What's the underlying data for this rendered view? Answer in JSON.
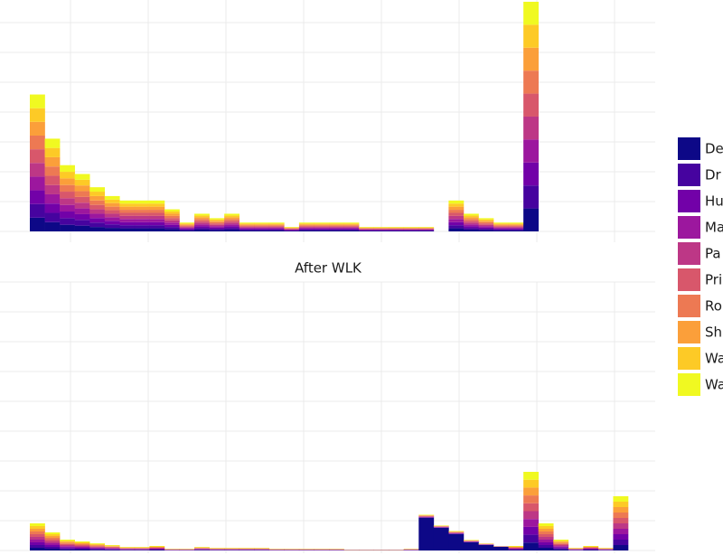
{
  "chart_data": [
    {
      "type": "bar",
      "stacked": true,
      "ylim": [
        0,
        262
      ],
      "categories": [
        null,
        null,
        null,
        null,
        null,
        null,
        null,
        null,
        null,
        null,
        null,
        null,
        null,
        null,
        null,
        null,
        null,
        null,
        null,
        null,
        null,
        null,
        null,
        null,
        null,
        null,
        null,
        null,
        null,
        null,
        null,
        null,
        null,
        null,
        null,
        null,
        null,
        null,
        null,
        null
      ],
      "series": [
        {
          "name": "De",
          "color": "#0d0887",
          "values": [
            15.5,
            10.5,
            7.5,
            6.5,
            5,
            4,
            3.5,
            3.5,
            3.5,
            2.5,
            1,
            2,
            1.5,
            2,
            1,
            1,
            1,
            0.5,
            1,
            1,
            1,
            1,
            0.5,
            0.5,
            0.5,
            0.5,
            0.5,
            0,
            3.5,
            2,
            1.5,
            1,
            1,
            26,
            0,
            0,
            0,
            0,
            0,
            0
          ]
        },
        {
          "name": "Dr",
          "color": "#46039f",
          "values": [
            15.5,
            10.5,
            7.5,
            6.5,
            5,
            4,
            3.5,
            3.5,
            3.5,
            2.5,
            1,
            2,
            1.5,
            2,
            1,
            1,
            1,
            0.5,
            1,
            1,
            1,
            1,
            0.5,
            0.5,
            0.5,
            0.5,
            0.5,
            0,
            3.5,
            2,
            1.5,
            1,
            1,
            26,
            0,
            0,
            0,
            0,
            0,
            0
          ]
        },
        {
          "name": "Hu",
          "color": "#7201a8",
          "values": [
            15.5,
            10.5,
            7.5,
            6.5,
            5,
            4,
            3.5,
            3.5,
            3.5,
            2.5,
            1,
            2,
            1.5,
            2,
            1,
            1,
            1,
            0.5,
            1,
            1,
            1,
            1,
            0.5,
            0.5,
            0.5,
            0.5,
            0.5,
            0,
            3.5,
            2,
            1.5,
            1,
            1,
            26,
            0,
            0,
            0,
            0,
            0,
            0
          ]
        },
        {
          "name": "Ma",
          "color": "#9c179e",
          "values": [
            15.5,
            10.5,
            7.5,
            6.5,
            5,
            4,
            3.5,
            3.5,
            3.5,
            2.5,
            1,
            2,
            1.5,
            2,
            1,
            1,
            1,
            0.5,
            1,
            1,
            1,
            1,
            0.5,
            0.5,
            0.5,
            0.5,
            0.5,
            0,
            3.5,
            2,
            1.5,
            1,
            1,
            26,
            0,
            0,
            0,
            0,
            0,
            0
          ]
        },
        {
          "name": "Pa",
          "color": "#bd3786",
          "values": [
            15.5,
            10.5,
            7.5,
            6.5,
            5,
            4,
            3.5,
            3.5,
            3.5,
            2.5,
            1,
            2,
            1.5,
            2,
            1,
            1,
            1,
            0.5,
            1,
            1,
            1,
            1,
            0.5,
            0.5,
            0.5,
            0.5,
            0.5,
            0,
            3.5,
            2,
            1.5,
            1,
            1,
            26,
            0,
            0,
            0,
            0,
            0,
            0
          ]
        },
        {
          "name": "Pri",
          "color": "#d8576b",
          "values": [
            15.5,
            10.5,
            7.5,
            6.5,
            5,
            4,
            3.5,
            3.5,
            3.5,
            2.5,
            1,
            2,
            1.5,
            2,
            1,
            1,
            1,
            0.5,
            1,
            1,
            1,
            1,
            0.5,
            0.5,
            0.5,
            0.5,
            0.5,
            0,
            3.5,
            2,
            1.5,
            1,
            1,
            26,
            0,
            0,
            0,
            0,
            0,
            0
          ]
        },
        {
          "name": "Ro",
          "color": "#ed7953",
          "values": [
            15.5,
            10.5,
            7.5,
            6.5,
            5,
            4,
            3.5,
            3.5,
            3.5,
            2.5,
            1,
            2,
            1.5,
            2,
            1,
            1,
            1,
            0.5,
            1,
            1,
            1,
            1,
            0.5,
            0.5,
            0.5,
            0.5,
            0.5,
            0,
            3.5,
            2,
            1.5,
            1,
            1,
            26,
            0,
            0,
            0,
            0,
            0,
            0
          ]
        },
        {
          "name": "Sh",
          "color": "#fb9f3a",
          "values": [
            15.5,
            10.5,
            7.5,
            6.5,
            5,
            4,
            3.5,
            3.5,
            3.5,
            2.5,
            1,
            2,
            1.5,
            2,
            1,
            1,
            1,
            0.5,
            1,
            1,
            1,
            1,
            0.5,
            0.5,
            0.5,
            0.5,
            0.5,
            0,
            3.5,
            2,
            1.5,
            1,
            1,
            26,
            0,
            0,
            0,
            0,
            0,
            0
          ]
        },
        {
          "name": "Wa",
          "color": "#fdca26",
          "values": [
            15.5,
            10.5,
            7.5,
            6.5,
            5,
            4,
            3.5,
            3.5,
            3.5,
            2.5,
            1,
            2,
            1.5,
            2,
            1,
            1,
            1,
            0.5,
            1,
            1,
            1,
            1,
            0.5,
            0.5,
            0.5,
            0.5,
            0.5,
            0,
            3.5,
            2,
            1.5,
            1,
            1,
            26,
            0,
            0,
            0,
            0,
            0,
            0
          ]
        },
        {
          "name": "Wa",
          "color": "#f0f921",
          "values": [
            15.5,
            10.5,
            7.5,
            6.5,
            5,
            4,
            3.5,
            3.5,
            3.5,
            2.5,
            1,
            2,
            1.5,
            2,
            1,
            1,
            1,
            0.5,
            1,
            1,
            1,
            1,
            0.5,
            0.5,
            0.5,
            0.5,
            0.5,
            0,
            3.5,
            2,
            1.5,
            1,
            1,
            26,
            0,
            0,
            0,
            0,
            0,
            0
          ]
        }
      ]
    },
    {
      "type": "bar",
      "stacked": true,
      "title": "After WLK",
      "ylim": [
        0,
        297
      ],
      "categories": [
        null,
        null,
        null,
        null,
        null,
        null,
        null,
        null,
        null,
        null,
        null,
        null,
        null,
        null,
        null,
        null,
        null,
        null,
        null,
        null,
        null,
        null,
        null,
        null,
        null,
        null,
        null,
        null,
        null,
        null,
        null,
        null,
        null,
        null,
        null,
        null,
        null,
        null,
        null,
        null
      ],
      "series": [
        {
          "color": "#0d0887",
          "values": [
            3,
            2,
            1.2,
            1,
            0.8,
            0.6,
            0.4,
            0.4,
            0.5,
            0.2,
            0.2,
            0.4,
            0.3,
            0.3,
            0.3,
            0.3,
            0.2,
            0.2,
            0.2,
            0.2,
            0.2,
            0.1,
            0.1,
            0.1,
            0.1,
            0.2,
            36,
            25,
            18,
            9,
            6,
            4,
            0.5,
            8.7,
            3,
            1.2,
            0.3,
            0.5,
            0.3,
            6
          ]
        },
        {
          "color": "#46039f",
          "values": [
            3,
            2,
            1.2,
            1,
            0.8,
            0.6,
            0.4,
            0.4,
            0.5,
            0.2,
            0.2,
            0.4,
            0.3,
            0.3,
            0.3,
            0.3,
            0.2,
            0.2,
            0.2,
            0.2,
            0.2,
            0.1,
            0.1,
            0.1,
            0.1,
            0.2,
            0.4,
            0.3,
            0.4,
            0.3,
            0.2,
            0.1,
            0.5,
            8.7,
            3,
            1.2,
            0.3,
            0.5,
            0.3,
            6
          ]
        },
        {
          "color": "#7201a8",
          "values": [
            3,
            2,
            1.2,
            1,
            0.8,
            0.6,
            0.4,
            0.4,
            0.5,
            0.2,
            0.2,
            0.4,
            0.3,
            0.3,
            0.3,
            0.3,
            0.2,
            0.2,
            0.2,
            0.2,
            0.2,
            0.1,
            0.1,
            0.1,
            0.1,
            0.2,
            0.4,
            0.3,
            0.4,
            0.3,
            0.2,
            0.1,
            0.5,
            8.7,
            3,
            1.2,
            0.3,
            0.5,
            0.3,
            6
          ]
        },
        {
          "color": "#9c179e",
          "values": [
            3,
            2,
            1.2,
            1,
            0.8,
            0.6,
            0.4,
            0.4,
            0.5,
            0.2,
            0.2,
            0.4,
            0.3,
            0.3,
            0.3,
            0.3,
            0.2,
            0.2,
            0.2,
            0.2,
            0.2,
            0.1,
            0.1,
            0.1,
            0.1,
            0.2,
            0.4,
            0.3,
            0.4,
            0.3,
            0.2,
            0.1,
            0.5,
            8.7,
            3,
            1.2,
            0.3,
            0.5,
            0.3,
            6
          ]
        },
        {
          "color": "#bd3786",
          "values": [
            3,
            2,
            1.2,
            1,
            0.8,
            0.6,
            0.4,
            0.4,
            0.5,
            0.2,
            0.2,
            0.4,
            0.3,
            0.3,
            0.3,
            0.3,
            0.2,
            0.2,
            0.2,
            0.2,
            0.2,
            0.1,
            0.1,
            0.1,
            0.1,
            0.2,
            0.4,
            0.3,
            0.4,
            0.3,
            0.2,
            0.1,
            0.5,
            8.7,
            3,
            1.2,
            0.3,
            0.5,
            0.3,
            6
          ]
        },
        {
          "color": "#d8576b",
          "values": [
            3,
            2,
            1.2,
            1,
            0.8,
            0.6,
            0.4,
            0.4,
            0.5,
            0.2,
            0.2,
            0.4,
            0.3,
            0.3,
            0.3,
            0.3,
            0.2,
            0.2,
            0.2,
            0.2,
            0.2,
            0.1,
            0.1,
            0.1,
            0.1,
            0.2,
            0.4,
            0.3,
            0.4,
            0.3,
            0.2,
            0.1,
            0.5,
            8.7,
            3,
            1.2,
            0.3,
            0.5,
            0.3,
            6
          ]
        },
        {
          "color": "#ed7953",
          "values": [
            3,
            2,
            1.2,
            1,
            0.8,
            0.6,
            0.4,
            0.4,
            0.5,
            0.2,
            0.2,
            0.4,
            0.3,
            0.3,
            0.3,
            0.3,
            0.2,
            0.2,
            0.2,
            0.2,
            0.2,
            0.1,
            0.1,
            0.1,
            0.1,
            0.2,
            0.4,
            0.3,
            0.4,
            0.3,
            0.2,
            0.1,
            0.5,
            8.7,
            3,
            1.2,
            0.3,
            0.5,
            0.3,
            6
          ]
        },
        {
          "color": "#fb9f3a",
          "values": [
            3,
            2,
            1.2,
            1,
            0.8,
            0.6,
            0.4,
            0.4,
            0.5,
            0.2,
            0.2,
            0.4,
            0.3,
            0.3,
            0.3,
            0.3,
            0.2,
            0.2,
            0.2,
            0.2,
            0.2,
            0.1,
            0.1,
            0.1,
            0.1,
            0.2,
            0.4,
            0.3,
            0.4,
            0.3,
            0.2,
            0.1,
            0.5,
            8.7,
            3,
            1.2,
            0.3,
            0.5,
            0.3,
            6
          ]
        },
        {
          "color": "#fdca26",
          "values": [
            3,
            2,
            1.2,
            1,
            0.8,
            0.6,
            0.4,
            0.4,
            0.5,
            0.2,
            0.2,
            0.4,
            0.3,
            0.3,
            0.3,
            0.3,
            0.2,
            0.2,
            0.2,
            0.2,
            0.2,
            0.1,
            0.1,
            0.1,
            0.1,
            0.2,
            0.4,
            0.3,
            0.4,
            0.3,
            0.2,
            0.1,
            0.5,
            8.7,
            3,
            1.2,
            0.3,
            0.5,
            0.3,
            6
          ]
        },
        {
          "color": "#f0f921",
          "values": [
            3,
            2,
            1.2,
            1,
            0.8,
            0.6,
            0.4,
            0.4,
            0.5,
            0.2,
            0.2,
            0.4,
            0.3,
            0.3,
            0.3,
            0.3,
            0.2,
            0.2,
            0.2,
            0.2,
            0.2,
            0.1,
            0.1,
            0.1,
            0.1,
            0.2,
            0.4,
            0.3,
            0.4,
            0.3,
            0.2,
            0.1,
            0.5,
            8.7,
            3,
            1.2,
            0.3,
            0.5,
            0.3,
            6
          ]
        }
      ]
    }
  ]
}
